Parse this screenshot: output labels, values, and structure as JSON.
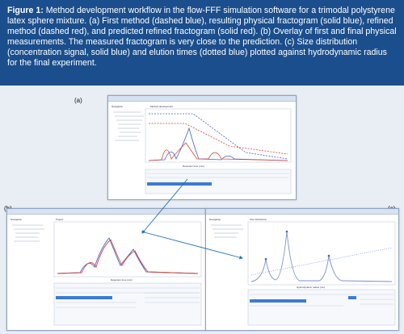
{
  "caption": {
    "figure_label": "Figure 1:",
    "text": "Method development workflow in the flow-FFF simulation software for a trimodal polystyrene latex sphere mixture. (a) First method (dashed blue), resulting physical fractogram (solid blue), refined method (dashed red), and predicted refined fractogram (solid red). (b) Overlay of first and final physical measurements. The measured fractogram is very close to the prediction. (c) Size distribution (concentration signal, solid blue) and elution times (dotted blue) plotted against hydrodynamic radius for the final experiment."
  },
  "panels": {
    "a": {
      "label": "(a)",
      "section_title": "Method development",
      "sidebar_title": "Navigation",
      "xlabel": "Retention time (min)"
    },
    "b": {
      "label": "(b)",
      "section_title": "Project",
      "sidebar_title": "Navigation",
      "xlabel": "Retention time (min)"
    },
    "c": {
      "label": "(c)",
      "section_title": "Size distribution",
      "sidebar_title": "Navigation",
      "xlabel": "Hydrodynamic radius (nm)"
    }
  },
  "colors": {
    "caption_bg": "#1a4e8c",
    "blue": "#3f63c9",
    "red": "#d9453b",
    "arrow": "#1f6fb2"
  }
}
